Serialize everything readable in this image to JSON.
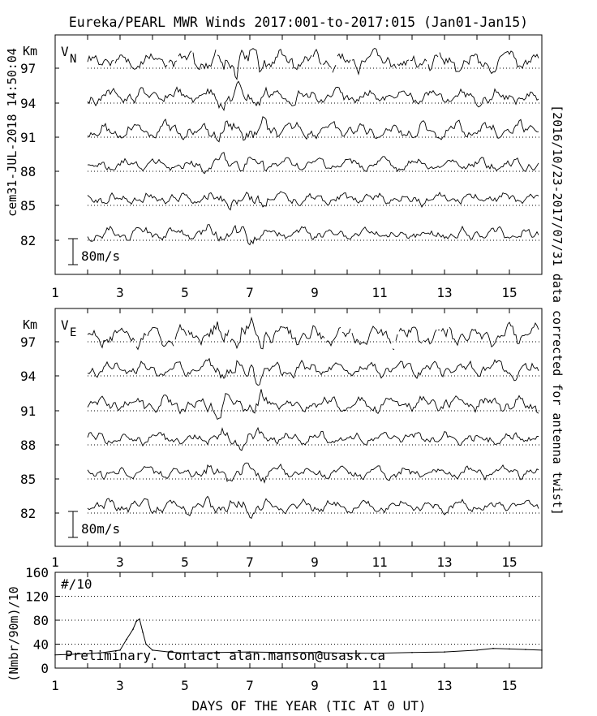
{
  "title": "Eureka/PEARL MWR Winds 2017:001-to-2017:015 (Jan01-Jan15)",
  "left_stamp": "cem31-JUL-2018 14:50:04",
  "right_note": "[2016/10/23-2017/07/31 data corrected for antenna twist]",
  "colors": {
    "ink": "#000000",
    "background": "#ffffff"
  },
  "chart_data": [
    {
      "type": "line",
      "panel_label": "V",
      "panel_label_sub": "N",
      "y_unit": "Km",
      "altitudes": [
        97,
        94,
        91,
        88,
        85,
        82
      ],
      "scale_bar_label": "80m/s",
      "scale_bar_value": 80,
      "x_tick_labels": [
        "1",
        "3",
        "5",
        "7",
        "9",
        "11",
        "13",
        "15"
      ],
      "xlim": [
        1,
        16
      ],
      "grid": "dotted baseline per altitude"
    },
    {
      "type": "line",
      "panel_label": "V",
      "panel_label_sub": "E",
      "y_unit": "Km",
      "altitudes": [
        97,
        94,
        91,
        88,
        85,
        82
      ],
      "scale_bar_label": "80m/s",
      "scale_bar_value": 80,
      "x_tick_labels": [
        "1",
        "3",
        "5",
        "7",
        "9",
        "11",
        "13",
        "15"
      ],
      "xlim": [
        1,
        16
      ],
      "grid": "dotted baseline per altitude"
    },
    {
      "type": "line",
      "panel_label": "#/10",
      "ylabel": "(Nmbr/90m)/10",
      "y_tick_labels": [
        "0",
        "40",
        "80",
        "120",
        "160"
      ],
      "ylim": [
        0,
        160
      ],
      "grid": "dotted at 40, 80, 120",
      "x_tick_labels": [
        "1",
        "3",
        "5",
        "7",
        "9",
        "11",
        "13",
        "15"
      ],
      "xlabel": "DAYS OF THE YEAR (TIC AT 0 UT)",
      "xlim": [
        1,
        16
      ],
      "annotation": "Preliminary. Contact alan.manson@usask.ca",
      "series": [
        {
          "x": [
            1.0,
            1.5,
            2.0,
            2.5,
            3.0,
            3.2,
            3.4,
            3.5,
            3.6,
            3.7,
            3.8,
            4.0,
            4.5,
            5.0,
            6.0,
            7.0,
            8.0,
            9.0,
            10.0,
            11.0,
            12.0,
            13.0,
            14.0,
            14.5,
            15.0,
            15.5,
            16.0
          ],
          "values": [
            22,
            23,
            24,
            26,
            30,
            48,
            65,
            78,
            82,
            60,
            40,
            30,
            27,
            25,
            26,
            27,
            26,
            26,
            25,
            25,
            26,
            27,
            30,
            33,
            32,
            31,
            30
          ]
        }
      ]
    }
  ]
}
